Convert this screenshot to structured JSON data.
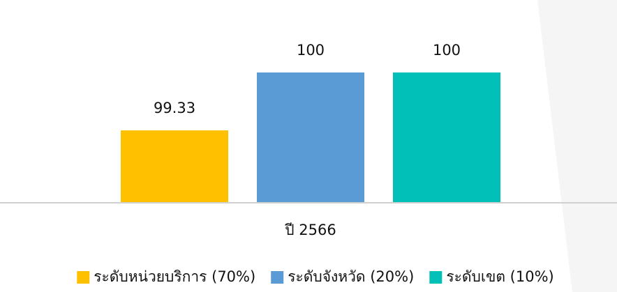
{
  "chart_data": {
    "type": "bar",
    "categories": [
      "ปี 2566"
    ],
    "series": [
      {
        "name": "ระดับหน่วยบริการ (70%)",
        "color": "#ffc000",
        "values": [
          99.33
        ]
      },
      {
        "name": "ระดับจังหวัด (20%)",
        "color": "#5b9bd5",
        "values": [
          100
        ]
      },
      {
        "name": "ระดับเขต (10%)",
        "color": "#00c0b8",
        "values": [
          100
        ]
      }
    ],
    "ylim": [
      98.5,
      100.25
    ],
    "legend": "bottom"
  }
}
